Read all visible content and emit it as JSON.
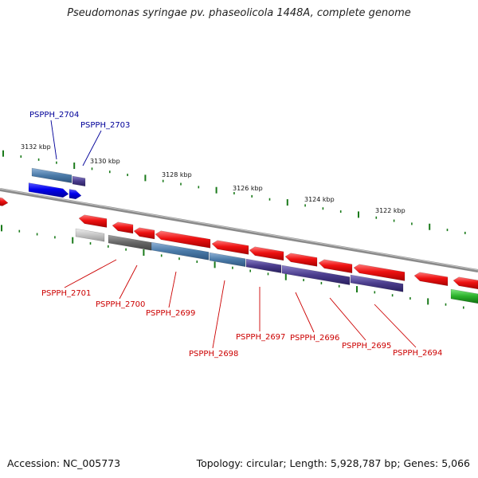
{
  "title": "Pseudomonas syringae pv. phaseolicola 1448A, complete genome",
  "footer": {
    "accession_label": "Accession",
    "accession_value": "NC_005773",
    "topology_label": "Topology",
    "topology_value": "circular",
    "length_label": "Length",
    "length_value": "5,928,787 bp",
    "genes_label": "Genes",
    "genes_value": "5,066"
  },
  "scale_labels": [
    "3132 kbp",
    "3130 kbp",
    "3128 kbp",
    "3126 kbp",
    "3124 kbp",
    "3122 kbp"
  ],
  "gene_labels": {
    "top": [
      {
        "name": "PSPPH_2704",
        "color": "#000099"
      },
      {
        "name": "PSPPH_2703",
        "color": "#000099"
      }
    ],
    "bottom": [
      {
        "name": "PSPPH_2701",
        "color": "#cc0000"
      },
      {
        "name": "PSPPH_2700",
        "color": "#cc0000"
      },
      {
        "name": "PSPPH_2699",
        "color": "#cc0000"
      },
      {
        "name": "PSPPH_2698",
        "color": "#cc0000"
      },
      {
        "name": "PSPPH_2697",
        "color": "#cc0000"
      },
      {
        "name": "PSPPH_2696",
        "color": "#cc0000"
      },
      {
        "name": "PSPPH_2695",
        "color": "#cc0000"
      },
      {
        "name": "PSPPH_2694",
        "color": "#cc0000"
      }
    ]
  },
  "colors": {
    "tick": "#1a7a1a",
    "backbone": "#888888",
    "cds_forward": "#ff1111",
    "cds_reverse": "#0000ee",
    "blast_teal": "#4a7aa8",
    "blast_purple": "#4a3c8c",
    "grey_block": "#707070",
    "green_block": "#2ab02a"
  }
}
